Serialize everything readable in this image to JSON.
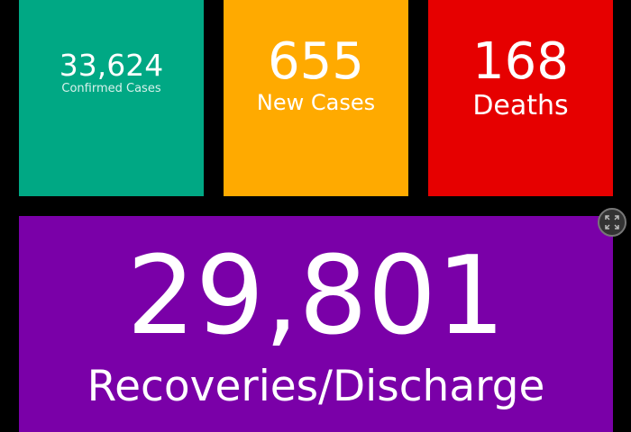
{
  "tiles": [
    {
      "value": "33,624",
      "label": "Confirmed Cases",
      "color": "#00A884"
    },
    {
      "value": "655",
      "label": "New Cases",
      "color": "#FFAA00"
    },
    {
      "value": "168",
      "label": "Deaths",
      "color": "#E60000"
    },
    {
      "value": "29,801",
      "label": "Recoveries/Discharge",
      "color": "#7A00A8"
    }
  ],
  "fullscreen_icon": "expand-arrows-icon"
}
